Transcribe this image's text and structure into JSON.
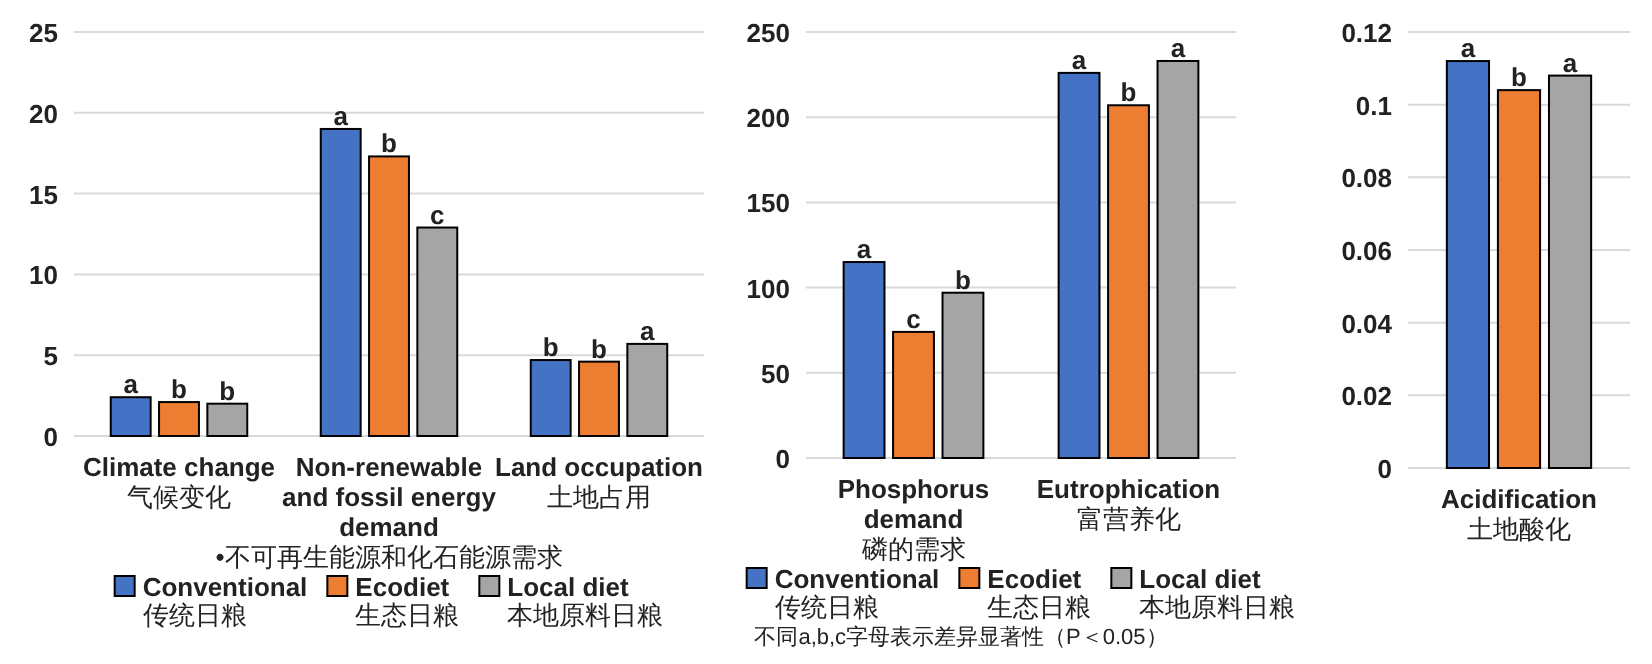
{
  "chart_data": [
    {
      "type": "bar",
      "categories": [
        "Climate change\n气候变化",
        "Non-renewable\nand fossil energy\ndemand\n•不可再生能源和化石能源需求",
        "Land occupation\n土地占用"
      ],
      "series": [
        {
          "name": "Conventional\n传统日粮",
          "color": "#4472c4",
          "values": [
            2.4,
            19.0,
            4.7
          ],
          "value_labels": [
            "a",
            "a",
            "b"
          ]
        },
        {
          "name": "Ecodiet\n生态日粮",
          "color": "#ed7d31",
          "values": [
            2.1,
            17.3,
            4.6
          ],
          "value_labels": [
            "b",
            "b",
            "b"
          ]
        },
        {
          "name": "Local diet\n本地原料日粮",
          "color": "#a5a5a5",
          "values": [
            2.0,
            12.9,
            5.7
          ],
          "value_labels": [
            "b",
            "c",
            "a"
          ]
        }
      ],
      "ylim": [
        0,
        25
      ],
      "yticks": [
        0,
        5,
        10,
        15,
        20,
        25
      ],
      "grid": "y",
      "legend": "bottom"
    },
    {
      "type": "bar",
      "categories": [
        "Phosphorus\ndemand\n磷的需求",
        "Eutrophication\n富营养化"
      ],
      "series": [
        {
          "name": "Conventional\n传统日粮",
          "color": "#4472c4",
          "values": [
            115,
            226
          ],
          "value_labels": [
            "a",
            "a"
          ]
        },
        {
          "name": "Ecodiet\n生态日粮",
          "color": "#ed7d31",
          "values": [
            74,
            207
          ],
          "value_labels": [
            "c",
            "b"
          ]
        },
        {
          "name": "Local diet\n本地原料日粮",
          "color": "#a5a5a5",
          "values": [
            97,
            233
          ],
          "value_labels": [
            "b",
            "a"
          ]
        }
      ],
      "ylim": [
        0,
        250
      ],
      "yticks": [
        0,
        50,
        100,
        150,
        200,
        250
      ],
      "grid": "y",
      "legend": "bottom",
      "annotations": [
        "不同a,b,c字母表示差异显著性（P＜0.05）"
      ]
    },
    {
      "type": "bar",
      "categories": [
        "Acidification\n土地酸化"
      ],
      "series": [
        {
          "color": "#4472c4",
          "values": [
            0.112
          ],
          "value_labels": [
            "a"
          ]
        },
        {
          "color": "#ed7d31",
          "values": [
            0.104
          ],
          "value_labels": [
            "b"
          ]
        },
        {
          "color": "#a5a5a5",
          "values": [
            0.108
          ],
          "value_labels": [
            "a"
          ]
        }
      ],
      "ylim": [
        0,
        0.12
      ],
      "yticks": [
        0,
        0.02,
        0.04,
        0.06,
        0.08,
        0.1,
        0.12
      ],
      "grid": "y"
    }
  ]
}
